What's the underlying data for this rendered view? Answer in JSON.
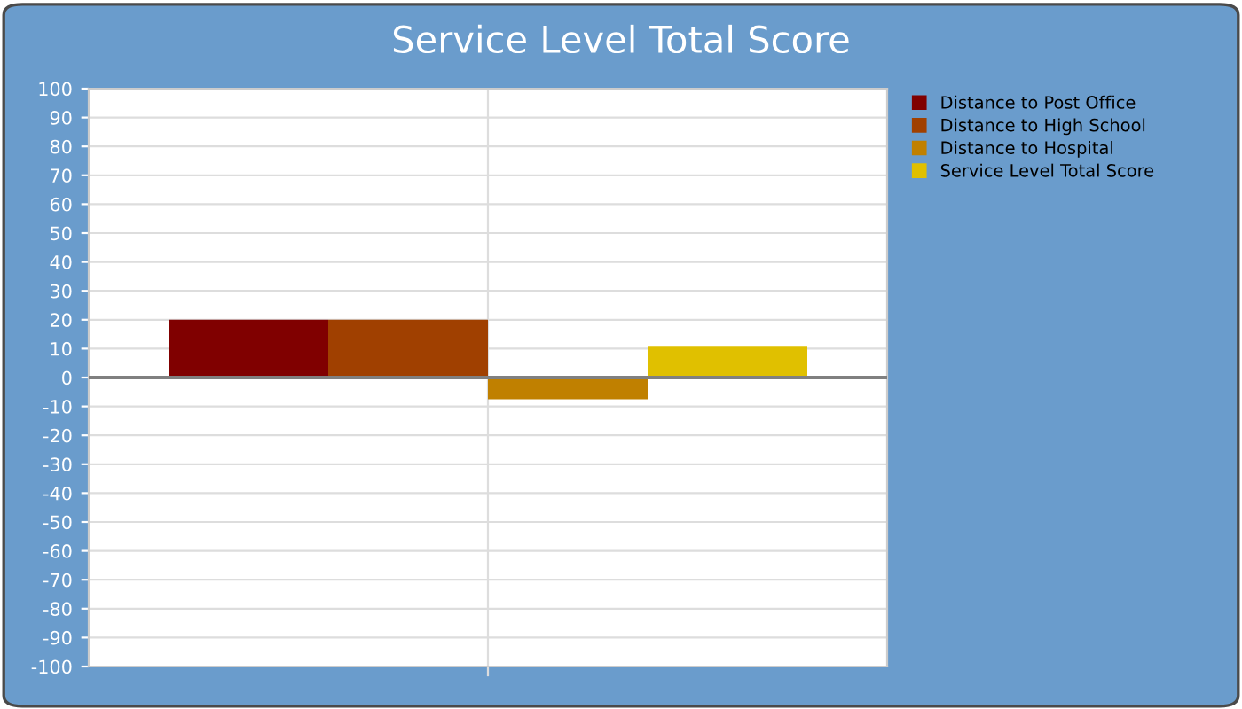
{
  "chart_data": {
    "type": "bar",
    "title": "Service Level Total Score",
    "categories": [
      null
    ],
    "series": [
      {
        "name": "Distance to Post Office",
        "color": "#800000",
        "values": [
          20
        ]
      },
      {
        "name": "Distance to High School",
        "color": "#a04000",
        "values": [
          20
        ]
      },
      {
        "name": "Distance to Hospital",
        "color": "#c08000",
        "values": [
          -7.5
        ]
      },
      {
        "name": "Service Level Total Score",
        "color": "#e0c000",
        "values": [
          11
        ]
      }
    ],
    "ylim": [
      -100,
      100
    ],
    "yticks": [
      -100,
      -90,
      -80,
      -70,
      -60,
      -50,
      -40,
      -30,
      -20,
      -10,
      0,
      10,
      20,
      30,
      40,
      50,
      60,
      70,
      80,
      90,
      100
    ],
    "grid": true,
    "legend": "top right"
  }
}
